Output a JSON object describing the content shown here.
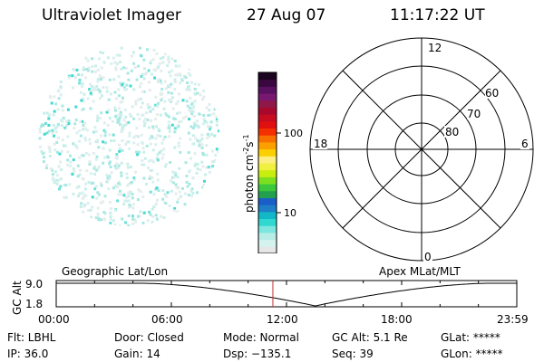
{
  "header": {
    "title": "Ultraviolet Imager",
    "date": "27 Aug 07",
    "time": "11:17:22 UT"
  },
  "colorbar": {
    "label": "photon cm",
    "label_sup1": "-2",
    "label_mid": "s",
    "label_sup2": "-1",
    "ticks": [
      {
        "label": "100",
        "value": 100
      },
      {
        "label": "10",
        "value": 10
      }
    ],
    "colors": [
      "#e6e6e6",
      "#d4f2ee",
      "#b8ece6",
      "#7de6de",
      "#30d8d0",
      "#12b8c8",
      "#1e7ec8",
      "#1a5ec8",
      "#22a050",
      "#3cc83c",
      "#7ce020",
      "#c8ee10",
      "#f0f040",
      "#fcee80",
      "#fcd000",
      "#fca000",
      "#f87000",
      "#f43000",
      "#e01010",
      "#c80c20",
      "#a8082c",
      "#901848",
      "#781870",
      "#5a1060",
      "#3a0840",
      "#1a0420"
    ]
  },
  "polar_plot": {
    "lat_labels": [
      "60",
      "70",
      "80"
    ],
    "mlt_labels": {
      "top": "12",
      "bottom": "0",
      "left": "18",
      "right": "6"
    }
  },
  "timeline": {
    "left_title": "Geographic Lat/Lon",
    "right_title": "Apex MLat/MLT",
    "axis_label": "GC Alt",
    "y_ticks": [
      "9.0",
      "1.8"
    ],
    "x_ticks": [
      "00:00",
      "06:00",
      "12:00",
      "18:00",
      "23:59"
    ],
    "marker_hour": 11.29,
    "accent_color": "#c03030"
  },
  "status": {
    "col1": [
      "Flt: LBHL",
      "IP: 36.0"
    ],
    "col2": [
      "Door: Closed",
      "Gain: 14"
    ],
    "col3": [
      "Mode: Normal",
      "Dsp: −135.1"
    ],
    "col4": [
      "GC Alt: 5.1 Re",
      "Seq: 39"
    ],
    "col5": [
      "GLat: *****",
      "GLon: *****"
    ]
  }
}
